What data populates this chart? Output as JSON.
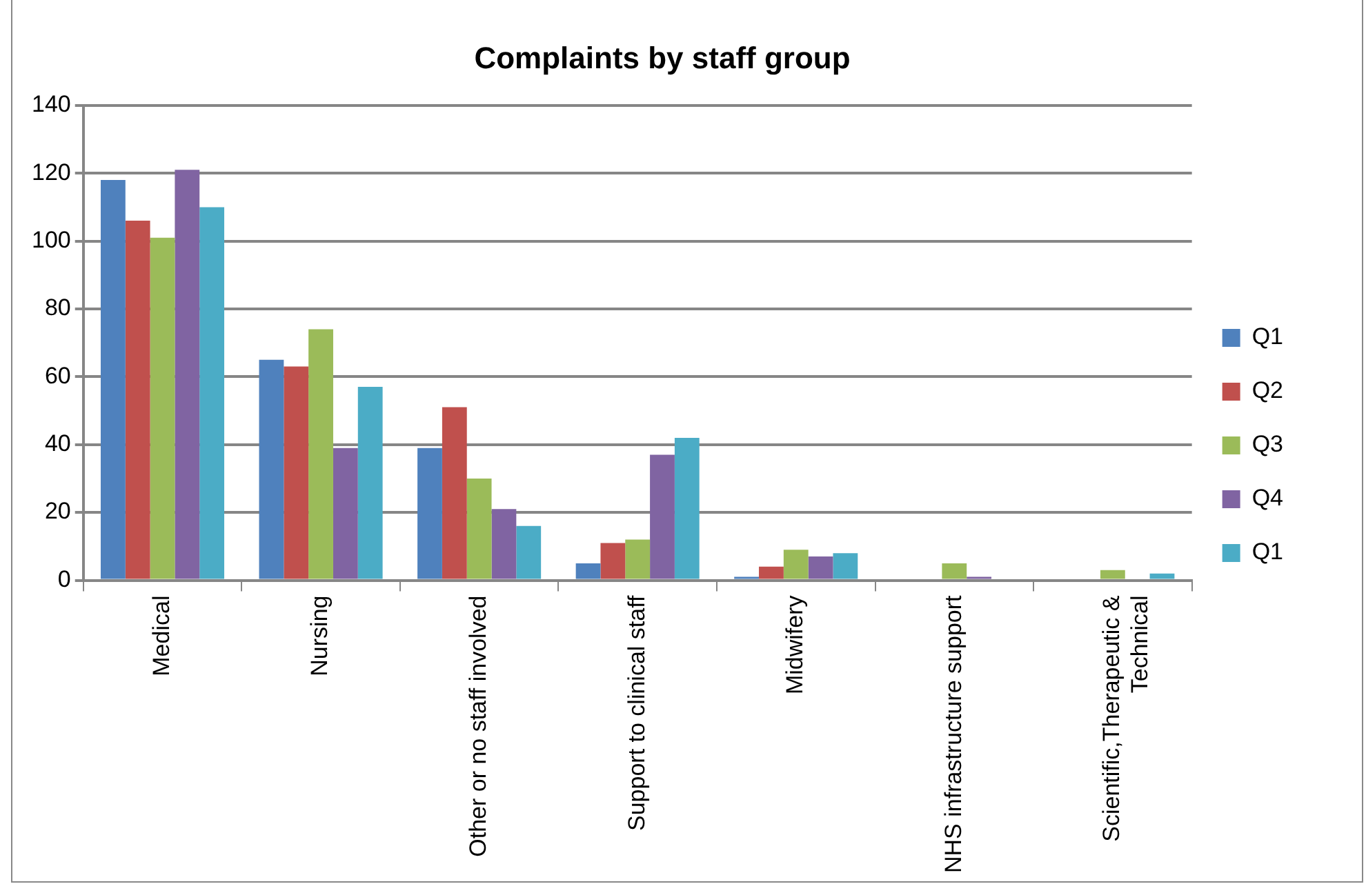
{
  "chart_data": {
    "type": "bar",
    "title": "Complaints by staff group",
    "categories": [
      "Medical",
      "Nursing",
      "Other or no staff involved",
      "Support to clinical staff",
      "Midwifery",
      "NHS infrastructure support",
      "Scientific,Therapeutic & Technical"
    ],
    "series": [
      {
        "name": "Q1",
        "color": "#4f81bd",
        "values": [
          118,
          65,
          39,
          5,
          1,
          0,
          0
        ]
      },
      {
        "name": "Q2",
        "color": "#c0504d",
        "values": [
          106,
          63,
          51,
          11,
          4,
          0,
          0
        ]
      },
      {
        "name": "Q3",
        "color": "#9bbb59",
        "values": [
          101,
          74,
          30,
          12,
          9,
          5,
          3
        ]
      },
      {
        "name": "Q4",
        "color": "#8064a2",
        "values": [
          121,
          39,
          21,
          37,
          7,
          1,
          0
        ]
      },
      {
        "name": "Q1",
        "color": "#4bacc6",
        "values": [
          110,
          57,
          16,
          42,
          8,
          0,
          2
        ]
      }
    ],
    "ylim": [
      0,
      140
    ],
    "yticks": [
      0,
      20,
      40,
      60,
      80,
      100,
      120,
      140
    ],
    "grid": "y",
    "legend": "right"
  }
}
